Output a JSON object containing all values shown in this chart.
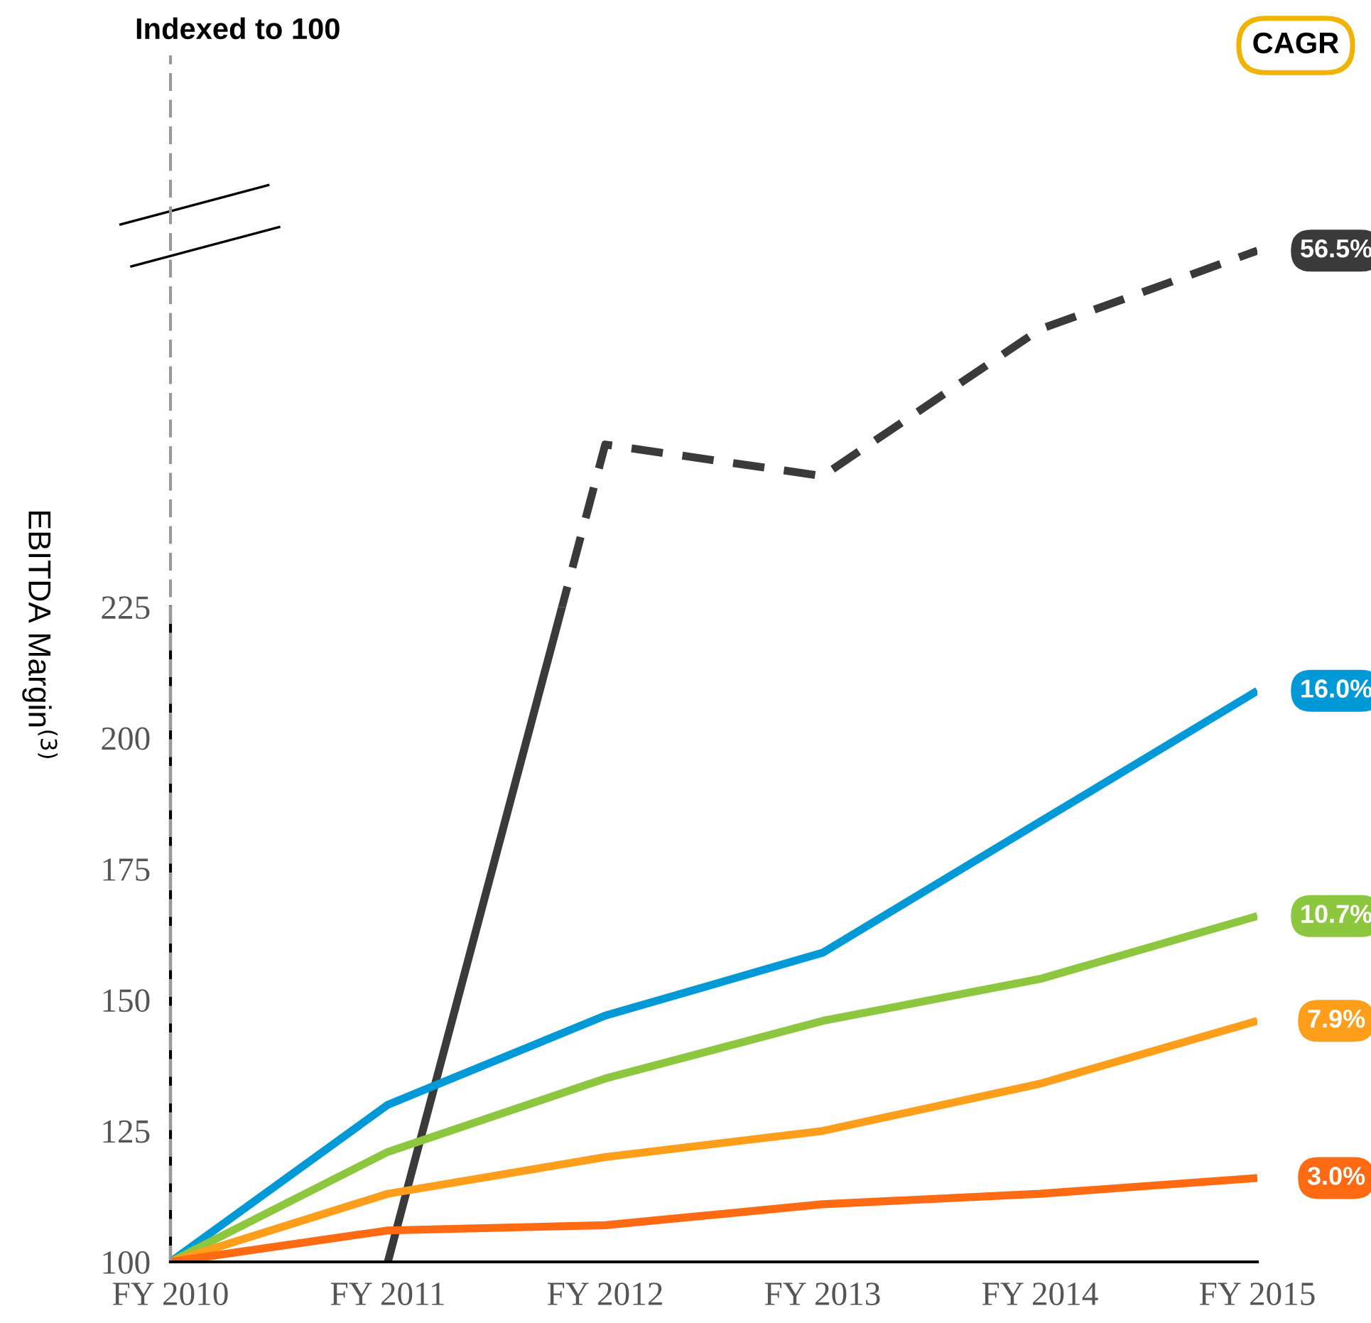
{
  "chart_data": {
    "type": "line",
    "title": "Indexed to 100",
    "ylabel": "EBITDA Margin$^{(3)}$",
    "categories": [
      "FY 2010",
      "FY 2011",
      "FY 2012",
      "FY 2013",
      "FY 2014",
      "FY 2015"
    ],
    "ylim": [
      100,
      330
    ],
    "yticks": [
      100,
      125,
      150,
      175,
      200,
      225
    ],
    "grid": false,
    "legend": false,
    "marker": "none",
    "series": [
      {
        "color": "#3a3a3a",
        "values": [
          null,
          100,
          256,
          250,
          278,
          293
        ],
        "line_style": "dashed"
      },
      {
        "color": "#0099d8",
        "values": [
          100,
          130,
          147,
          159,
          184,
          209
        ],
        "line_style": "solid"
      },
      {
        "color": "#8dc63f",
        "values": [
          100,
          121,
          135,
          146,
          154,
          166
        ],
        "line_style": "solid"
      },
      {
        "color": "#ff9e1b",
        "values": [
          100,
          113,
          120,
          125,
          134,
          146
        ],
        "line_style": "solid"
      },
      {
        "color": "#ff6a13",
        "values": [
          100,
          106,
          107,
          111,
          113,
          116
        ],
        "line_style": "solid"
      }
    ],
    "annotations": [
      "CAGR",
      {
        "text": "56.5%",
        "x": "FY 2015",
        "y": 293
      },
      {
        "text": "16.0%",
        "x": "FY 2015",
        "y": 209
      },
      {
        "text": "10.7%",
        "x": "FY 2015",
        "y": 166
      },
      {
        "text": "7.9%",
        "x": "FY 2015",
        "y": 146
      },
      {
        "text": "3.0%",
        "x": "FY 2015",
        "y": 116
      }
    ]
  }
}
